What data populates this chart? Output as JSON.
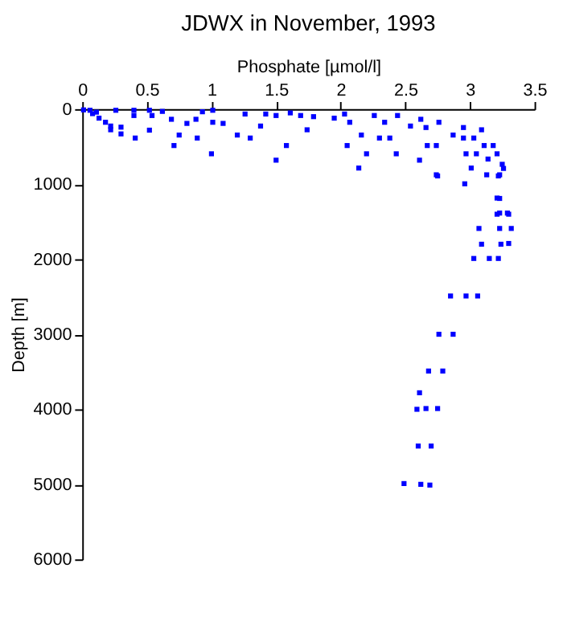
{
  "chart_data": {
    "type": "scatter",
    "title": "JDWX in November, 1993",
    "xlabel": "Phosphate [µmol/l]",
    "ylabel": "Depth [m]",
    "xlim": [
      0,
      3.5
    ],
    "xticks": [
      0,
      0.5,
      1,
      1.5,
      2,
      2.5,
      3,
      3.5
    ],
    "ylim": [
      6000,
      0
    ],
    "yticks": [
      0,
      1000,
      2000,
      3000,
      4000,
      5000,
      6000
    ],
    "grid": false,
    "marker": "square",
    "series": [
      {
        "color": "#0000ff",
        "x": [
          0.01,
          0.06,
          0.08,
          0.11,
          0.13,
          0.18,
          0.22,
          0.22,
          0.26,
          0.3,
          0.3,
          0.4,
          0.41,
          0.4,
          0.52,
          0.54,
          0.52,
          0.62,
          0.69,
          0.71,
          0.75,
          0.81,
          0.88,
          0.89,
          0.93,
          1.01,
          1.01,
          1.0,
          1.09,
          1.2,
          1.26,
          1.3,
          1.38,
          1.42,
          1.5,
          1.5,
          1.58,
          1.61,
          1.69,
          1.74,
          1.79,
          1.95,
          2.03,
          2.05,
          2.07,
          2.14,
          2.16,
          2.2,
          2.26,
          2.3,
          2.34,
          2.38,
          2.43,
          2.44,
          2.54,
          2.61,
          2.62,
          2.66,
          2.67,
          2.74,
          2.74,
          2.76,
          2.87,
          2.95,
          2.95,
          2.96,
          2.97,
          3.01,
          3.03,
          3.05,
          3.09,
          3.11,
          3.13,
          3.14,
          3.18,
          3.21,
          3.23,
          3.25,
          3.21,
          3.23,
          3.29,
          3.26,
          3.22,
          2.75,
          3.23,
          3.21,
          3.3,
          3.07,
          3.23,
          3.32,
          3.09,
          3.24,
          3.3,
          3.03,
          3.15,
          3.22,
          2.85,
          2.97,
          3.06,
          2.76,
          2.87,
          2.68,
          2.79,
          2.61,
          2.66,
          2.75,
          2.59,
          2.6,
          2.7,
          2.49,
          2.62,
          2.69
        ],
        "values": [
          10,
          15,
          60,
          40,
          120,
          175,
          225,
          275,
          15,
          240,
          330,
          15,
          385,
          85,
          15,
          85,
          280,
          30,
          135,
          485,
          345,
          190,
          135,
          385,
          35,
          15,
          175,
          595,
          190,
          345,
          65,
          385,
          225,
          65,
          680,
          85,
          485,
          50,
          85,
          275,
          100,
          120,
          65,
          485,
          175,
          785,
          345,
          595,
          85,
          385,
          175,
          385,
          595,
          85,
          225,
          680,
          135,
          245,
          485,
          485,
          875,
          175,
          345,
          245,
          385,
          995,
          595,
          785,
          385,
          595,
          275,
          485,
          875,
          665,
          485,
          595,
          875,
          735,
          1185,
          1385,
          1385,
          790,
          890,
          890,
          1190,
          1400,
          1400,
          1590,
          1590,
          1590,
          1800,
          1800,
          1790,
          1990,
          1990,
          1990,
          2490,
          2490,
          2490,
          3000,
          3000,
          3490,
          3490,
          3780,
          3990,
          3990,
          4000,
          4490,
          4490,
          4990,
          5000,
          5010
        ]
      }
    ]
  }
}
